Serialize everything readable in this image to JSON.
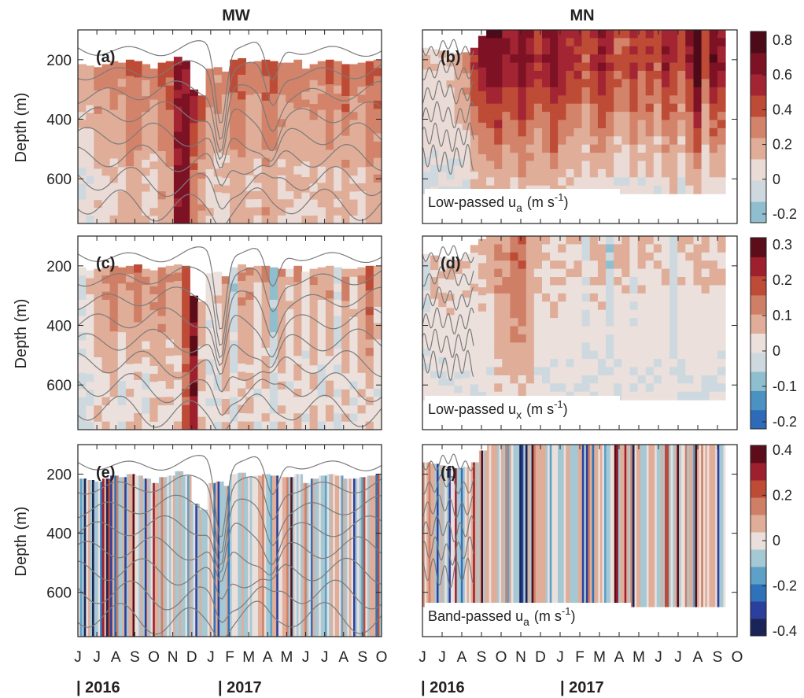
{
  "figure": {
    "col_titles": [
      "MW",
      "MN"
    ],
    "ylabel": "Depth (m)",
    "month_ticks": [
      "J",
      "J",
      "A",
      "S",
      "O",
      "N",
      "D",
      "J",
      "F",
      "M",
      "A",
      "M",
      "J",
      "J",
      "A",
      "S",
      "O"
    ],
    "years": [
      "| 2016",
      "| 2017"
    ]
  },
  "colors": {
    "scale8": [
      "#8fbfce",
      "#ced9df",
      "#eadbd6",
      "#e0ad98",
      "#d3836a",
      "#bd4b36",
      "#a32533",
      "#7e1225",
      "#4d0a18"
    ],
    "scale3": [
      "#2e6ab8",
      "#4b91c2",
      "#8fbfce",
      "#ced9df",
      "#ebe0dc",
      "#e0ad98",
      "#cf7f66",
      "#bd4b36",
      "#9e1f2e",
      "#5c0d19"
    ],
    "scale4": [
      "#1b2458",
      "#2b3f9c",
      "#2f72ba",
      "#5da0c8",
      "#a5c8d5",
      "#ebdfdb",
      "#e0ad98",
      "#cf7f66",
      "#bd4b36",
      "#9e1f2e",
      "#5c0d19"
    ],
    "contour": "#7b7b7b",
    "axis": "#222222"
  },
  "chart_data": [
    {
      "panel": "(a)",
      "type": "heatmap",
      "station": "MW",
      "ylim": [
        750,
        100
      ],
      "yticks": [
        200,
        400,
        600
      ],
      "variable": "",
      "x_months": [
        "J",
        "J",
        "A",
        "S",
        "O",
        "N",
        "D",
        "J",
        "F",
        "M",
        "A",
        "M",
        "J",
        "J",
        "A",
        "S"
      ],
      "profiles": {
        "depth_top": [
          215,
          220,
          225,
          215,
          205,
          210,
          200,
          205,
          215,
          230,
          210,
          205,
          190,
          205,
          300,
          320,
          230,
          225,
          240,
          200,
          195,
          210,
          205,
          200,
          205,
          210,
          210,
          200,
          230,
          215,
          205,
          200,
          205,
          215,
          215,
          210,
          205,
          200
        ],
        "value_200m": [
          0.2,
          0.2,
          0.3,
          0.3,
          0.3,
          0.3,
          0.4,
          0.4,
          0.3,
          0.3,
          0.4,
          0.4,
          0.6,
          0.6,
          0.7,
          0.5,
          0.3,
          0.3,
          0.3,
          0.4,
          0.4,
          0.3,
          0.3,
          0.4,
          0.4,
          0.3,
          0.3,
          0.3,
          0.3,
          0.3,
          0.3,
          0.4,
          0.3,
          0.4,
          0.3,
          0.3,
          0.4,
          0.4
        ],
        "value_600m": [
          0.0,
          0.0,
          0.1,
          0.1,
          0.1,
          0.1,
          0.2,
          0.2,
          0.1,
          0.1,
          0.2,
          0.2,
          0.6,
          0.7,
          0.3,
          0.2,
          0.1,
          0.1,
          0.1,
          0.2,
          0.2,
          0.1,
          0.1,
          0.2,
          0.2,
          0.1,
          0.1,
          0.1,
          0.1,
          0.1,
          0.1,
          0.2,
          0.1,
          0.2,
          0.1,
          0.1,
          0.2,
          0.2
        ]
      },
      "colorbar": {
        "ticks": [
          0.8,
          0.6,
          0.4,
          0.2,
          0,
          -0.2
        ],
        "range": [
          -0.25,
          0.85
        ]
      }
    },
    {
      "panel": "(b)",
      "type": "heatmap",
      "station": "MN",
      "ylim": [
        750,
        100
      ],
      "yticks": [
        200,
        400,
        600
      ],
      "variable": "Low-passed u_a (m s^-1)",
      "profiles": {
        "depth_top": [
          160,
          165,
          170,
          175,
          180,
          175,
          160,
          120,
          100,
          100,
          100,
          100,
          100,
          100,
          100,
          100,
          100,
          100,
          100,
          100,
          100,
          100,
          100,
          100,
          100,
          100,
          100,
          100,
          100,
          100,
          100,
          100,
          100,
          100,
          100,
          100,
          100,
          100
        ],
        "value_200m": [
          0.1,
          0.1,
          0.1,
          0.1,
          0.2,
          0.3,
          0.5,
          0.6,
          0.7,
          0.7,
          0.6,
          0.6,
          0.7,
          0.6,
          0.5,
          0.6,
          0.7,
          0.6,
          0.5,
          0.5,
          0.4,
          0.5,
          0.6,
          0.5,
          0.4,
          0.4,
          0.5,
          0.4,
          0.5,
          0.4,
          0.6,
          0.5,
          0.4,
          0.6,
          0.8,
          0.4,
          0.7,
          0.6
        ],
        "value_600m": [
          0.0,
          0.0,
          0.0,
          0.0,
          0.0,
          0.0,
          0.1,
          0.1,
          0.1,
          0.2,
          0.1,
          0.1,
          0.2,
          0.1,
          0.1,
          0.1,
          0.2,
          0.1,
          0.1,
          0.1,
          0.0,
          0.1,
          0.1,
          0.1,
          0.0,
          0.0,
          0.1,
          0.0,
          0.1,
          0.0,
          0.1,
          0.1,
          0.0,
          0.1,
          0.2,
          0.0,
          0.1,
          0.1
        ]
      }
    },
    {
      "panel": "(c)",
      "type": "heatmap",
      "station": "MW",
      "ylim": [
        750,
        100
      ],
      "yticks": [
        200,
        400,
        600
      ],
      "variable": "",
      "profiles": {
        "depth_top": [
          205,
          215,
          210,
          205,
          200,
          205,
          200,
          195,
          210,
          215,
          205,
          200,
          195,
          200,
          300,
          320,
          225,
          220,
          235,
          205,
          195,
          205,
          200,
          200,
          205,
          210,
          210,
          200,
          220,
          210,
          205,
          200,
          205,
          210,
          210,
          205,
          200,
          200
        ],
        "value_200m": [
          0.0,
          0.05,
          0.1,
          0.1,
          0.15,
          0.1,
          0.1,
          0.15,
          0.1,
          0.1,
          0.15,
          0.1,
          0.1,
          0.2,
          0.3,
          0.1,
          0.0,
          0.05,
          0.1,
          -0.05,
          0.1,
          0.1,
          0.05,
          0.1,
          -0.1,
          0.1,
          0.05,
          0.1,
          0.05,
          0.1,
          0.05,
          0.1,
          0.0,
          0.1,
          0.05,
          0.1,
          0.2,
          0.1
        ],
        "value_600m": [
          0.0,
          0.0,
          0.05,
          0.05,
          0.05,
          0.0,
          0.05,
          0.05,
          0.0,
          0.05,
          0.05,
          0.05,
          0.05,
          0.15,
          0.25,
          0.05,
          0.0,
          0.0,
          0.05,
          0.0,
          0.05,
          0.05,
          0.0,
          0.05,
          0.0,
          0.05,
          0.0,
          0.05,
          0.0,
          0.05,
          0.0,
          0.05,
          0.0,
          0.05,
          0.0,
          0.05,
          0.05,
          0.0
        ]
      },
      "colorbar": {
        "ticks": [
          0.3,
          0.2,
          0.1,
          0,
          -0.1,
          -0.2
        ],
        "range": [
          -0.22,
          0.32
        ]
      }
    },
    {
      "panel": "(d)",
      "type": "heatmap",
      "station": "MN",
      "ylim": [
        750,
        100
      ],
      "yticks": [
        200,
        400,
        600
      ],
      "variable": "Low-passed u_x (m s^-1)",
      "profiles": {
        "depth_top": [
          160,
          165,
          170,
          175,
          180,
          160,
          130,
          110,
          100,
          100,
          100,
          100,
          100,
          100,
          100,
          100,
          100,
          100,
          100,
          100,
          100,
          100,
          100,
          100,
          100,
          100,
          100,
          100,
          100,
          100,
          100,
          100,
          100,
          100,
          100,
          100,
          100,
          100
        ],
        "value_200m": [
          0.0,
          0.05,
          0.05,
          0.05,
          0.05,
          0.05,
          0.05,
          0.05,
          0.05,
          0.1,
          0.1,
          0.15,
          0.15,
          0.1,
          0.05,
          0.05,
          0.05,
          0.05,
          0.05,
          0.05,
          0.0,
          0.05,
          0.05,
          -0.05,
          0.05,
          0.05,
          0.0,
          0.05,
          0.05,
          0.05,
          0.05,
          -0.05,
          0.05,
          0.05,
          0.05,
          0.05,
          0.05,
          0.05
        ],
        "value_600m": [
          0.0,
          0.0,
          0.0,
          0.0,
          0.0,
          0.0,
          0.0,
          0.0,
          0.0,
          0.05,
          0.05,
          0.05,
          0.05,
          0.05,
          0.0,
          0.0,
          0.0,
          0.0,
          0.0,
          0.0,
          0.0,
          0.0,
          0.0,
          0.0,
          0.0,
          0.0,
          0.0,
          0.0,
          0.0,
          0.0,
          0.0,
          0.0,
          0.0,
          0.0,
          0.0,
          0.0,
          0.0,
          0.0
        ]
      }
    },
    {
      "panel": "(e)",
      "type": "heatmap",
      "station": "MW",
      "ylim": [
        750,
        100
      ],
      "yticks": [
        200,
        400,
        600
      ],
      "variable": "",
      "note_values": "high-frequency vertical stripes, range about -0.4 to 0.4",
      "colorbar": {
        "ticks": [
          0.4,
          0.2,
          0,
          -0.2,
          -0.4
        ],
        "range": [
          -0.42,
          0.42
        ]
      }
    },
    {
      "panel": "(f)",
      "type": "heatmap",
      "station": "MN",
      "ylim": [
        750,
        100
      ],
      "yticks": [
        200,
        400,
        600
      ],
      "variable": "Band-passed u_a (m s^-1)"
    }
  ],
  "labels": {
    "a": "(a)",
    "b": "(b)",
    "c": "(c)",
    "d": "(d)",
    "e": "(e)",
    "f": "(f)",
    "lp_ua": "Low-passed u",
    "lp_ua_sub": "a",
    "lp_unit": "(m s",
    "lp_exp": "-1",
    "lp_close": ")",
    "lp_ux": "Low-passed u",
    "lp_ux_sub": "x",
    "bp_ua": "Band-passed u",
    "bp_ua_sub": "a"
  }
}
